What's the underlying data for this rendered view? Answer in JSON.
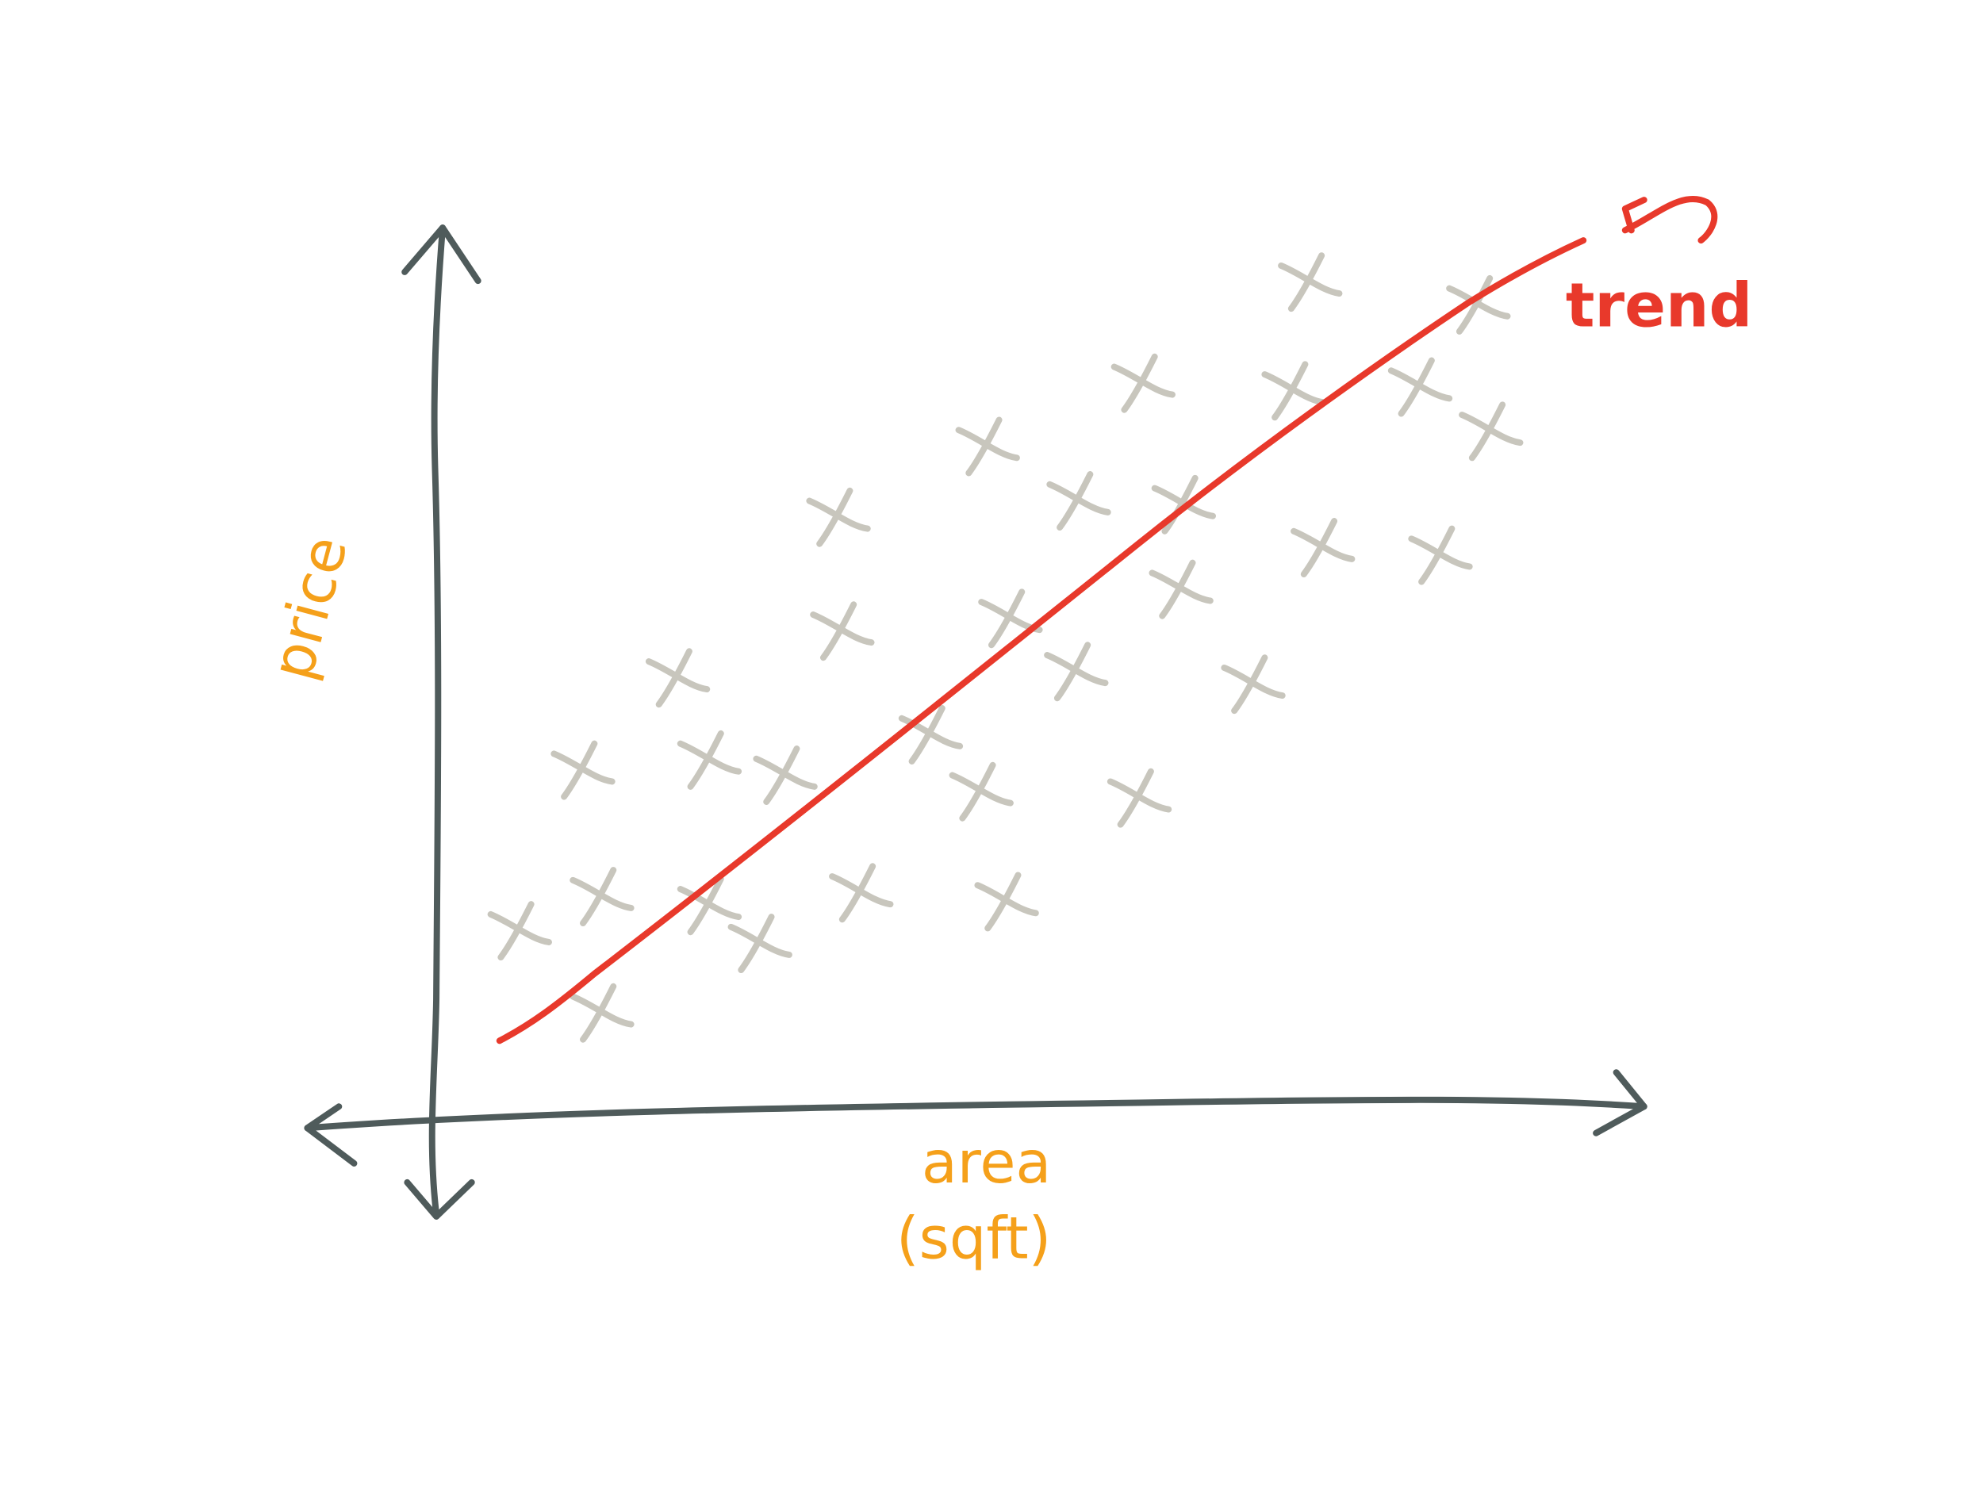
{
  "labels": {
    "y_axis": "price",
    "x_axis": [
      "area",
      "(sqft)"
    ],
    "trend": "trend"
  }
}
